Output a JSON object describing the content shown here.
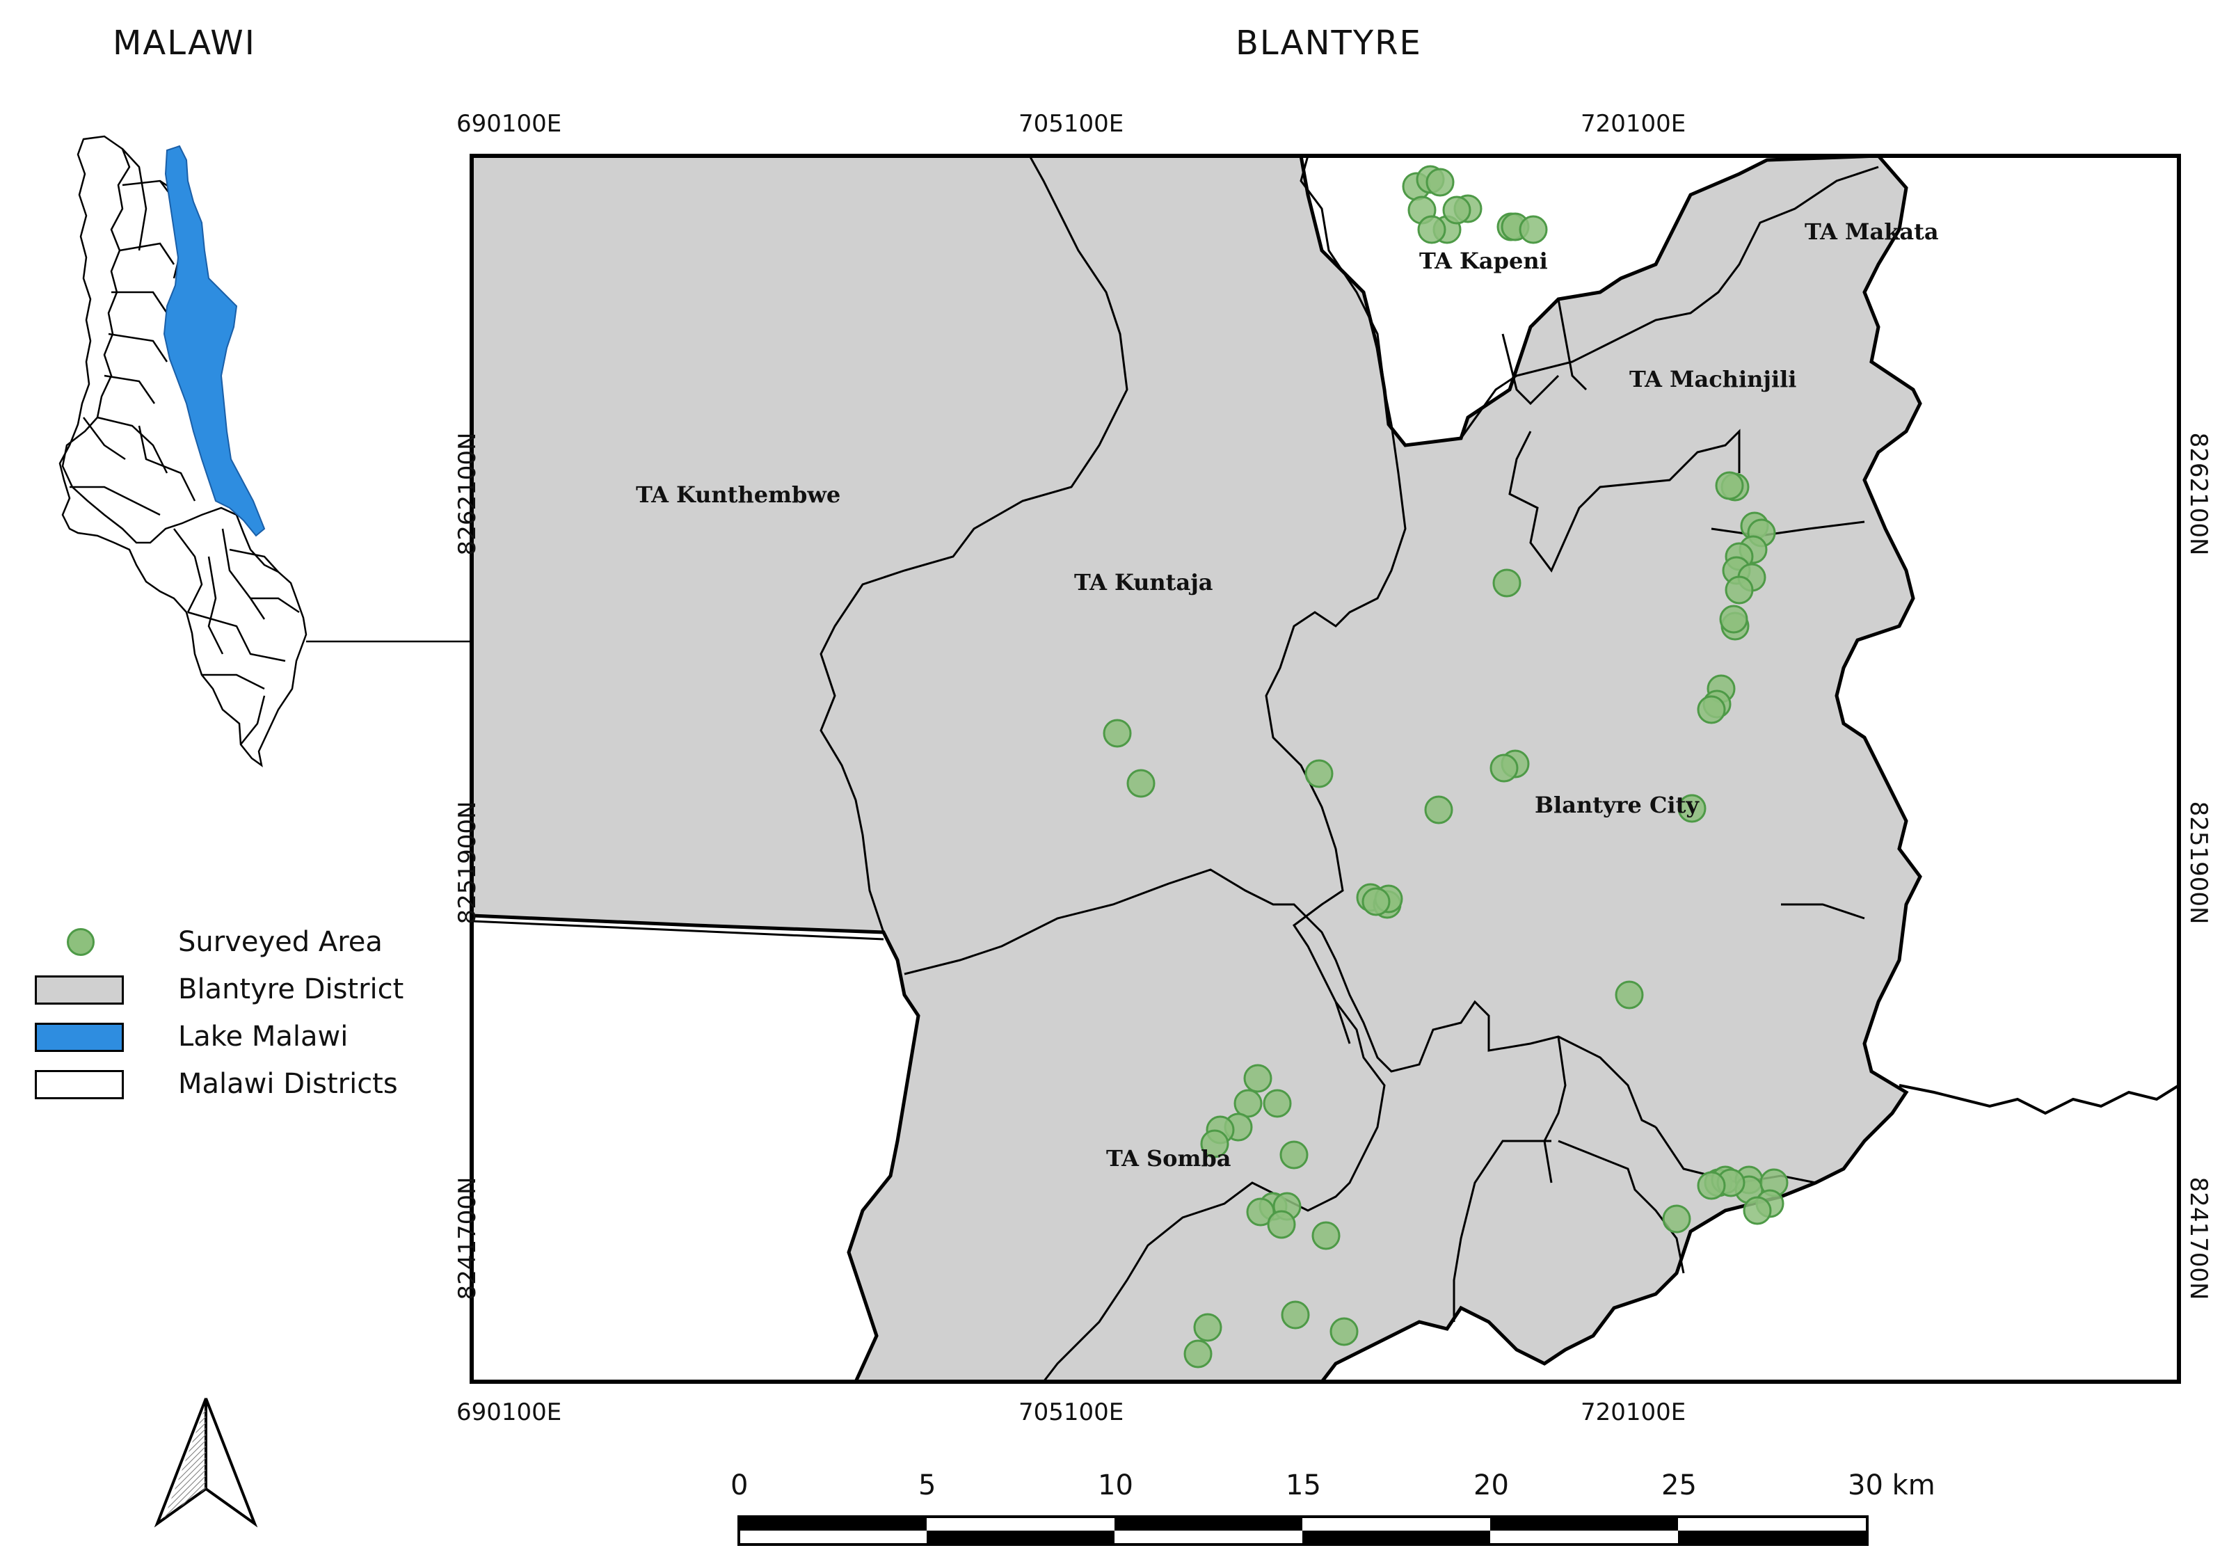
{
  "titles": {
    "left": "MALAWI",
    "right": "BLANTYRE"
  },
  "colors": {
    "district_fill": "#d0d0d0",
    "lake_fill": "#2e8de0",
    "survey_fill": "#8dc07d",
    "survey_stroke": "#4e9a47",
    "outline": "#000000"
  },
  "grid": {
    "x_labels": [
      "690100E",
      "705100E",
      "720100E"
    ],
    "y_labels": [
      "8262100N",
      "8251900N",
      "8241700N"
    ]
  },
  "area_labels": [
    {
      "id": "kapeni",
      "text": "TA Kapeni"
    },
    {
      "id": "makata",
      "text": "TA Makata"
    },
    {
      "id": "machinjili",
      "text": "TA Machinjili"
    },
    {
      "id": "kunthembwe",
      "text": "TA Kunthembwe"
    },
    {
      "id": "kuntaja",
      "text": "TA Kuntaja"
    },
    {
      "id": "blantyre_city",
      "text": "Blantyre City"
    },
    {
      "id": "somba",
      "text": "TA Somba"
    }
  ],
  "legend": [
    {
      "id": "surveyed",
      "label": "Surveyed Area",
      "symbol": "dot"
    },
    {
      "id": "district",
      "label": "Blantyre District",
      "symbol": "grey"
    },
    {
      "id": "lake",
      "label": "Lake Malawi",
      "symbol": "blue"
    },
    {
      "id": "districts",
      "label": "Malawi Districts",
      "symbol": "white"
    }
  ],
  "scale_bar": {
    "ticks": [
      "0",
      "5",
      "10",
      "15",
      "20",
      "25",
      "30 km"
    ]
  },
  "north_arrow": {
    "icon": "north-arrow-icon"
  },
  "survey_point_count": 64
}
